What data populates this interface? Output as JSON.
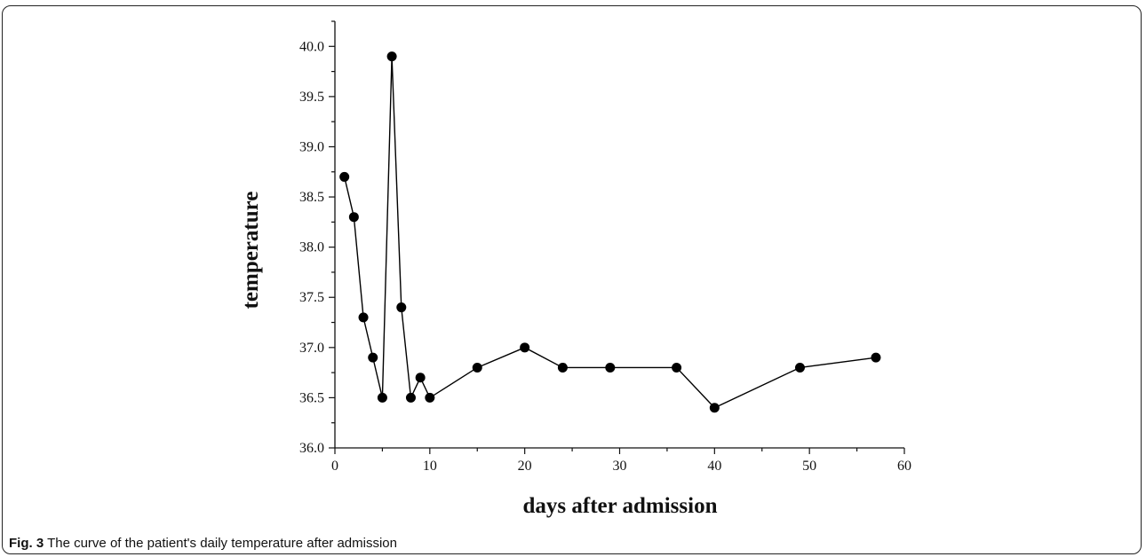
{
  "caption": {
    "label": "Fig. 3",
    "text": "The curve of the patient's daily temperature after admission"
  },
  "chart_data": {
    "type": "line",
    "xlabel": "days after admission",
    "ylabel": "temperature",
    "xlim": [
      0,
      60
    ],
    "ylim": [
      36.0,
      40.25
    ],
    "xticks": [
      0,
      10,
      20,
      30,
      40,
      50,
      60
    ],
    "yticks": [
      36.0,
      36.5,
      37.0,
      37.5,
      38.0,
      38.5,
      39.0,
      39.5,
      40.0
    ],
    "grid": false,
    "marker": "filled-circle",
    "color": "#000000",
    "series": [
      {
        "x": [
          1,
          2,
          3,
          4,
          5,
          6,
          7,
          8,
          9,
          10,
          15,
          20,
          24,
          29,
          36,
          40,
          49,
          57
        ],
        "y": [
          38.7,
          38.3,
          37.3,
          36.9,
          36.5,
          39.9,
          37.4,
          36.5,
          36.7,
          36.5,
          36.8,
          37.0,
          36.8,
          36.8,
          36.8,
          36.4,
          36.8,
          36.9
        ]
      }
    ]
  }
}
